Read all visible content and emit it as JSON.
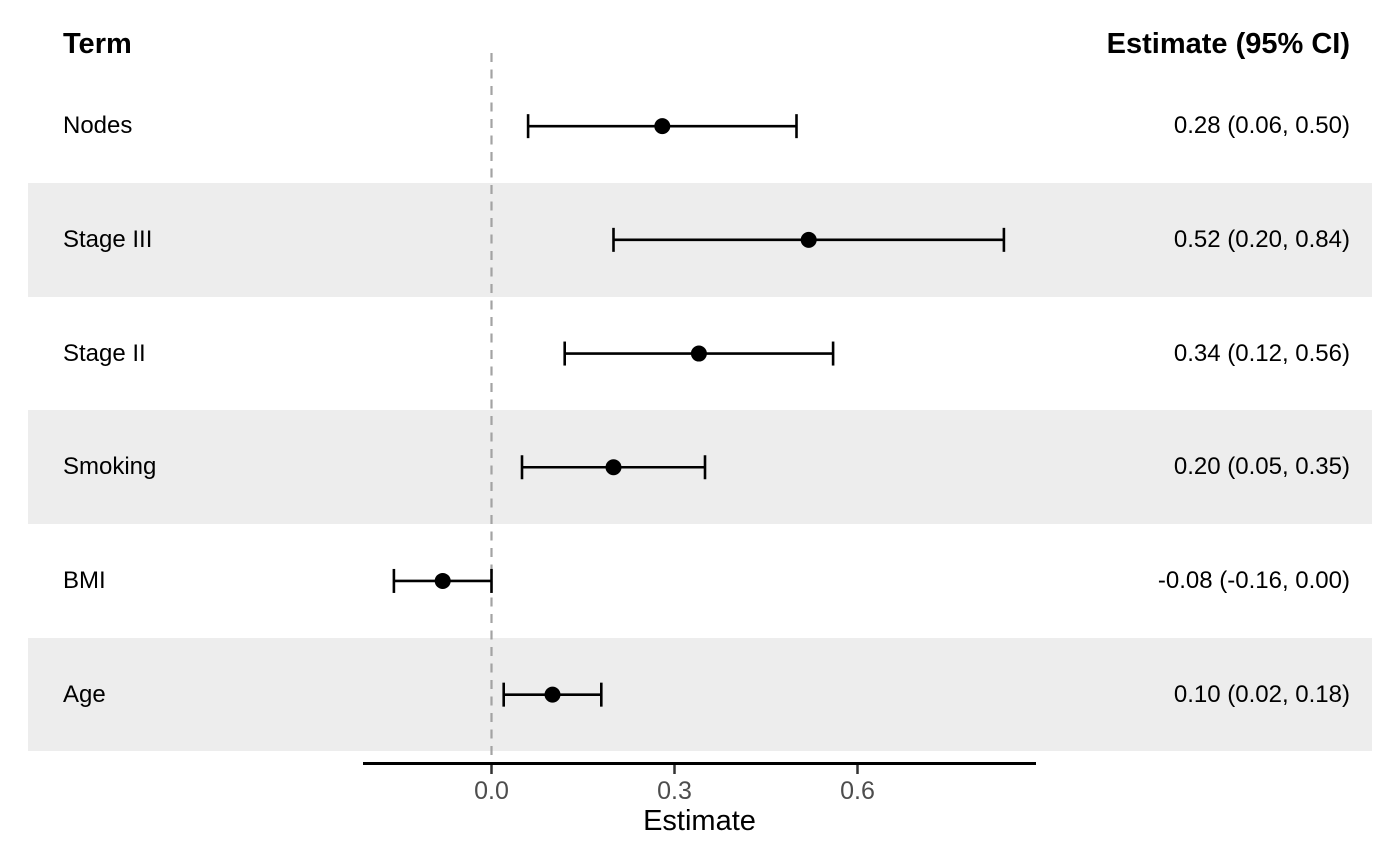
{
  "columns": {
    "term_header": "Term",
    "estimate_header": "Estimate (95% CI)"
  },
  "chart_data": {
    "type": "forest",
    "title": "",
    "xlabel": "Estimate",
    "ylabel": "",
    "x_ticks": [
      0.0,
      0.3,
      0.6
    ],
    "x_tick_labels": [
      "0.0",
      "0.3",
      "0.6"
    ],
    "xlim": [
      -0.21,
      0.89
    ],
    "reference_line": 0.0,
    "grid": "off",
    "legend": "none",
    "rows": [
      {
        "term": "Nodes",
        "estimate": 0.28,
        "ci_low": 0.06,
        "ci_high": 0.5,
        "estimate_label": "0.28 (0.06, 0.50)",
        "striped": false
      },
      {
        "term": "Stage III",
        "estimate": 0.52,
        "ci_low": 0.2,
        "ci_high": 0.84,
        "estimate_label": "0.52 (0.20, 0.84)",
        "striped": true
      },
      {
        "term": "Stage II",
        "estimate": 0.34,
        "ci_low": 0.12,
        "ci_high": 0.56,
        "estimate_label": "0.34 (0.12, 0.56)",
        "striped": false
      },
      {
        "term": "Smoking",
        "estimate": 0.2,
        "ci_low": 0.05,
        "ci_high": 0.35,
        "estimate_label": "0.20 (0.05, 0.35)",
        "striped": true
      },
      {
        "term": "BMI",
        "estimate": -0.08,
        "ci_low": -0.16,
        "ci_high": 0.0,
        "estimate_label": "-0.08 (-0.16, 0.00)",
        "striped": false
      },
      {
        "term": "Age",
        "estimate": 0.1,
        "ci_low": 0.02,
        "ci_high": 0.18,
        "estimate_label": "0.10 (0.02, 0.18)",
        "striped": true
      }
    ]
  },
  "colors": {
    "background": "#FFFFFF",
    "stripe": "#EDEDED",
    "point": "#000000",
    "ci_line": "#000000",
    "reference_line": "#A3A3A3",
    "axis_line": "#000000",
    "tick_mark": "#333333",
    "tick_label": "#4D4D4D",
    "text": "#000000"
  }
}
